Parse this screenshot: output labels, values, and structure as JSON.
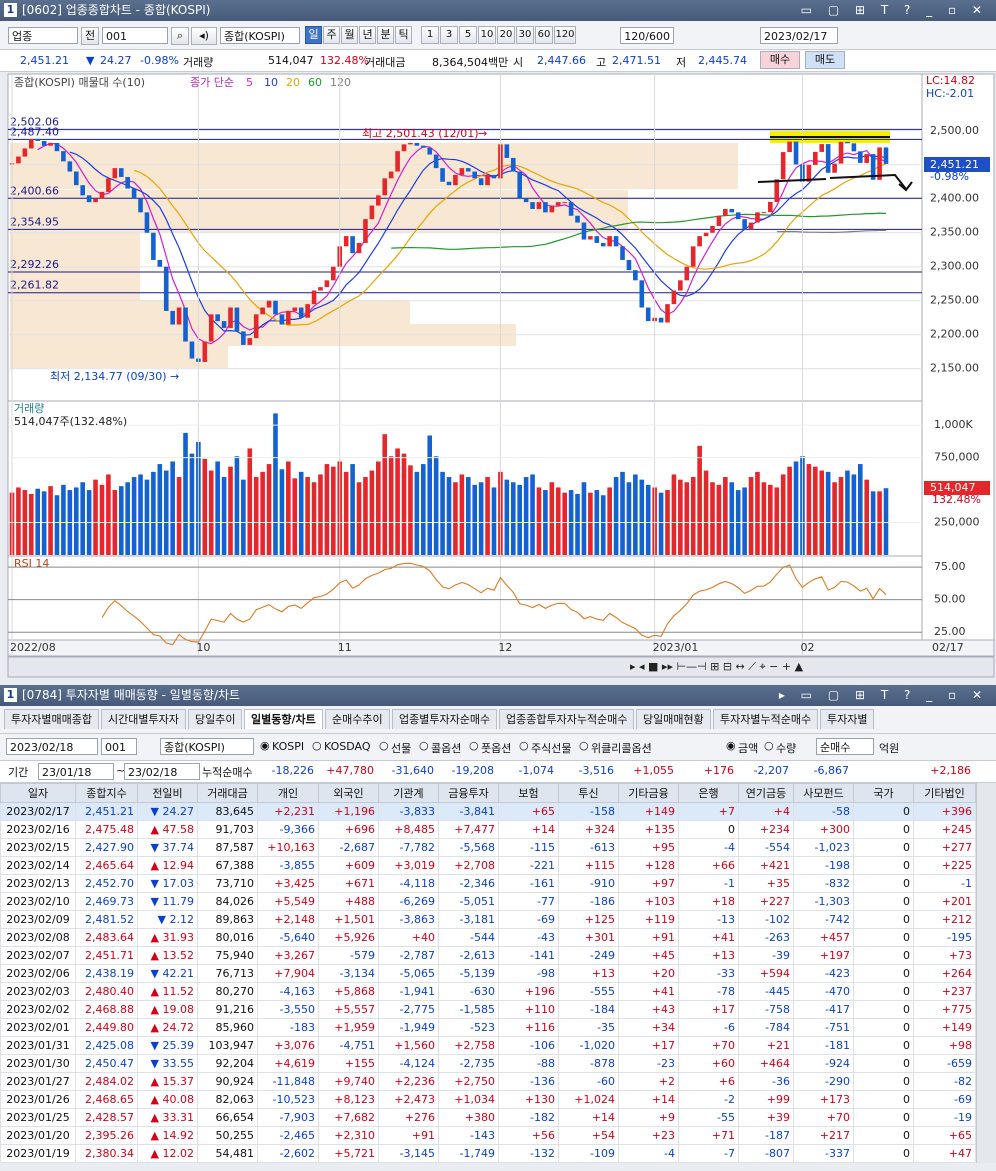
{
  "window1": {
    "window_no": "1",
    "title": "[0602] 업종종합차트 - 종합(KOSPI)",
    "toolbar": {
      "market": "업종",
      "all": "전",
      "code": "001",
      "name": "종합(KOSPI)",
      "periods": [
        "일",
        "주",
        "월",
        "년",
        "분",
        "틱"
      ],
      "intervals": [
        "1",
        "3",
        "5",
        "10",
        "20",
        "30",
        "60",
        "120"
      ],
      "count": "120/600",
      "date": "2023/02/17"
    },
    "quote": {
      "price": "2,451.21",
      "arrow": "▼",
      "change": "24.27",
      "change_pct": "-0.98%",
      "volume_label": "거래량",
      "volume": "514,047",
      "volume_ratio": "132.48%",
      "amount_label": "거래대금",
      "amount": "8,364,504백만",
      "open_label": "시",
      "open": "2,447.66",
      "high_label": "고",
      "high": "2,471.51",
      "low_label": "저",
      "low": "2,445.74",
      "buy": "매수",
      "sell": "매도"
    }
  },
  "chart_data": {
    "type": "candlestick",
    "legend": "종합(KOSPI) 매물대 수(10)",
    "ma_label": "종가 단순",
    "ma_periods": [
      5,
      10,
      20,
      60,
      120
    ],
    "ma_colors": [
      "#d21ed2",
      "#1e3ce6",
      "#e8a400",
      "#1f9a2a",
      "#7d7d7d"
    ],
    "lc": "LC:14.82",
    "hc": "HC:-2.01",
    "categories": [
      "2022/08",
      null,
      null,
      null,
      null,
      null,
      null,
      null,
      null,
      null,
      null,
      null,
      null,
      null,
      null,
      null,
      null,
      null,
      null,
      null,
      null,
      null,
      null,
      null,
      null,
      null,
      null,
      null,
      null,
      "10",
      null,
      null,
      null,
      null,
      null,
      null,
      null,
      null,
      null,
      null,
      null,
      null,
      null,
      null,
      null,
      null,
      null,
      null,
      null,
      null,
      null,
      "11",
      null,
      null,
      null,
      null,
      null,
      null,
      null,
      null,
      null,
      null,
      null,
      null,
      null,
      null,
      null,
      null,
      null,
      null,
      null,
      null,
      null,
      null,
      null,
      null,
      "12",
      null,
      null,
      null,
      null,
      null,
      null,
      null,
      null,
      null,
      null,
      null,
      null,
      null,
      null,
      null,
      null,
      null,
      null,
      null,
      null,
      null,
      null,
      null,
      "2023/01",
      null,
      null,
      null,
      null,
      null,
      null,
      null,
      null,
      null,
      null,
      null,
      null,
      null,
      null,
      null,
      null,
      null,
      null,
      null,
      null,
      null,
      null,
      "02",
      null,
      null,
      null,
      null,
      null,
      null,
      null,
      null,
      null,
      null,
      null,
      null,
      "02/17"
    ],
    "closes": [
      2452,
      2462,
      2474,
      2488,
      2485,
      2478,
      2482,
      2470,
      2455,
      2440,
      2420,
      2405,
      2395,
      2400,
      2410,
      2430,
      2445,
      2432,
      2415,
      2400,
      2380,
      2350,
      2310,
      2300,
      2235,
      2215,
      2240,
      2190,
      2165,
      2160,
      2190,
      2230,
      2220,
      2210,
      2240,
      2205,
      2185,
      2195,
      2230,
      2240,
      2250,
      2230,
      2215,
      2235,
      2240,
      2225,
      2245,
      2265,
      2270,
      2280,
      2300,
      2330,
      2345,
      2320,
      2335,
      2370,
      2390,
      2405,
      2430,
      2440,
      2470,
      2480,
      2482,
      2478,
      2475,
      2465,
      2445,
      2425,
      2420,
      2435,
      2445,
      2440,
      2430,
      2420,
      2435,
      2430,
      2480,
      2460,
      2440,
      2400,
      2395,
      2385,
      2395,
      2380,
      2390,
      2395,
      2395,
      2375,
      2365,
      2340,
      2345,
      2335,
      2330,
      2345,
      2330,
      2310,
      2295,
      2280,
      2240,
      2220,
      2225,
      2218,
      2245,
      2265,
      2280,
      2300,
      2330,
      2345,
      2350,
      2360,
      2375,
      2385,
      2380,
      2370,
      2355,
      2365,
      2380,
      2380.34,
      2395.26,
      2428.57,
      2468.65,
      2484.02,
      2450.47,
      2425.08,
      2449.8,
      2468.88,
      2480.4,
      2438.19,
      2451.71,
      2483.64,
      2481.52,
      2469.73,
      2452.7,
      2465.64,
      2427.9,
      2475.48,
      2451.21
    ],
    "volumes": [
      480000,
      520000,
      500000,
      470000,
      510000,
      490000,
      530000,
      460000,
      540000,
      500000,
      520000,
      560000,
      500000,
      580000,
      540000,
      620000,
      500000,
      530000,
      560000,
      600000,
      620000,
      580000,
      640000,
      700000,
      650000,
      720000,
      600000,
      940000,
      780000,
      870000,
      740000,
      650000,
      720000,
      600000,
      680000,
      760000,
      580000,
      820000,
      600000,
      640000,
      700000,
      1090000,
      660000,
      720000,
      590000,
      640000,
      600000,
      560000,
      620000,
      700000,
      680000,
      720000,
      640000,
      700000,
      560000,
      600000,
      650000,
      720000,
      930000,
      760000,
      820000,
      780000,
      690000,
      640000,
      700000,
      920000,
      760000,
      640000,
      600000,
      560000,
      620000,
      600000,
      540000,
      560000,
      600000,
      520000,
      640000,
      580000,
      560000,
      540000,
      600000,
      620000,
      520000,
      500000,
      560000,
      520000,
      480000,
      500000,
      470000,
      560000,
      480000,
      500000,
      460000,
      520000,
      600000,
      640000,
      560000,
      620000,
      580000,
      540000,
      520000,
      480000,
      500000,
      620000,
      580000,
      560000,
      600000,
      840000,
      650000,
      560000,
      540000,
      600000,
      560000,
      500000,
      520000,
      600000,
      640000,
      560000,
      540000,
      520000,
      620000,
      680000,
      720000,
      760000,
      700000,
      680000,
      650000,
      640000,
      560000,
      600000,
      650000,
      620000,
      700000,
      580000,
      490000,
      490000,
      514047
    ],
    "ylim": [
      2104,
      2582
    ],
    "yticks": [
      {
        "value": 2150,
        "label": "2,150.00"
      },
      {
        "value": 2200,
        "label": "2,200.00"
      },
      {
        "value": 2250,
        "label": "2,250.00"
      },
      {
        "value": 2300,
        "label": "2,300.00"
      },
      {
        "value": 2350,
        "label": "2,350.00"
      },
      {
        "value": 2400,
        "label": "2,400.00"
      },
      {
        "value": 2450,
        "label": "2,450.00"
      },
      {
        "value": 2500,
        "label": "2,500.00"
      }
    ],
    "levels": [
      {
        "value": 2502.06,
        "label": "2,502.06"
      },
      {
        "value": 2487.4,
        "label": "2,487.40"
      },
      {
        "value": 2400.66,
        "label": "2,400.66"
      },
      {
        "value": 2354.95,
        "label": "2,354.95"
      },
      {
        "value": 2292.26,
        "label": "2,292.26"
      },
      {
        "value": 2261.82,
        "label": "2,261.82"
      }
    ],
    "high_note": "최고 2,501.43 (12/01)",
    "low_note": "최저 2,134.77 (09/30)",
    "last_price": "2,451.21",
    "last_pct": "-0.98%",
    "volume_title": "거래량",
    "volume_note": "514,047주(132.48%)",
    "volume_tag": "514,047",
    "volume_tag_pct": "132.48%",
    "vlim": [
      0,
      1170000
    ],
    "vticks": [
      {
        "value": 250000,
        "label": "250,000"
      },
      {
        "value": 750000,
        "label": "750,000"
      },
      {
        "value": 1000000,
        "label": "1,000K"
      }
    ],
    "rsi_label": "RSI 14",
    "rsi_period": 14,
    "rsi_lim": [
      19,
      82
    ],
    "rsi_ticks": [
      {
        "value": 25,
        "label": "25.00"
      },
      {
        "value": 50,
        "label": "50.00"
      },
      {
        "value": 75,
        "label": "75.00"
      }
    ],
    "up_color": "#e5262b",
    "down_color": "#1462d2",
    "level_color": "#1a1a8c"
  },
  "window2": {
    "window_no": "1",
    "title": "[0784] 투자자별 매매동향 - 일별동향/차트",
    "tabs": [
      "투자자별매매종합",
      "시간대별투자자",
      "당일추이",
      "일별동향/차트",
      "순매수추이",
      "업종별투자자순매수",
      "업종종합투자자누적순매수",
      "당일매매현황",
      "투자자별누적순매수",
      "투자자별"
    ],
    "active_tab": 3,
    "controls": {
      "date": "2023/02/18",
      "code": "001",
      "name": "종합(KOSPI)",
      "markets": [
        "KOSPI",
        "KOSDAQ",
        "선물",
        "콜옵션",
        "풋옵션",
        "주식선물",
        "위클리콜옵션"
      ],
      "units": [
        "금액",
        "수량"
      ],
      "mode": "순매수",
      "unit": "억원"
    }
  },
  "table": {
    "period": {
      "label": "기간",
      "from": "23/01/18",
      "tilde": "~",
      "to": "23/02/18",
      "sum_label": "누적순매수",
      "sums": [
        "-18,226",
        "+47,780",
        "-31,640",
        "-19,208",
        "-1,074",
        "-3,516",
        "+1,055",
        "+176",
        "-2,207",
        "-6,867",
        null,
        "+2,186"
      ]
    },
    "headers": [
      "일자",
      "종합지수",
      "전일비",
      "거래대금",
      "개인",
      "외국인",
      "기관계",
      "금융투자",
      "보험",
      "투신",
      "기타금융",
      "은행",
      "연기금등",
      "사모펀드",
      "국가",
      "기타법인"
    ],
    "rows": [
      [
        "2023/02/17",
        "2,451.21",
        "▼ 24.27",
        "83,645",
        "+2,231",
        "+1,196",
        "-3,833",
        "-3,841",
        "+65",
        "-158",
        "+149",
        "+7",
        "+4",
        "-58",
        "0",
        "+396"
      ],
      [
        "2023/02/16",
        "2,475.48",
        "▲ 47.58",
        "91,703",
        "-9,366",
        "+696",
        "+8,485",
        "+7,477",
        "+14",
        "+324",
        "+135",
        "0",
        "+234",
        "+300",
        "0",
        "+245"
      ],
      [
        "2023/02/15",
        "2,427.90",
        "▼ 37.74",
        "87,587",
        "+10,163",
        "-2,687",
        "-7,782",
        "-5,568",
        "-115",
        "-613",
        "+95",
        "-4",
        "-554",
        "-1,023",
        "0",
        "+277"
      ],
      [
        "2023/02/14",
        "2,465.64",
        "▲ 12.94",
        "67,388",
        "-3,855",
        "+609",
        "+3,019",
        "+2,708",
        "-221",
        "+115",
        "+128",
        "+66",
        "+421",
        "-198",
        "0",
        "+225"
      ],
      [
        "2023/02/13",
        "2,452.70",
        "▼ 17.03",
        "73,710",
        "+3,425",
        "+671",
        "-4,118",
        "-2,346",
        "-161",
        "-910",
        "+97",
        "-1",
        "+35",
        "-832",
        "0",
        "-1"
      ],
      [
        "2023/02/10",
        "2,469.73",
        "▼ 11.79",
        "84,026",
        "+5,549",
        "+488",
        "-6,269",
        "-5,051",
        "-77",
        "-186",
        "+103",
        "+18",
        "+227",
        "-1,303",
        "0",
        "+201"
      ],
      [
        "2023/02/09",
        "2,481.52",
        "▼ 2.12",
        "89,863",
        "+2,148",
        "+1,501",
        "-3,863",
        "-3,181",
        "-69",
        "+125",
        "+119",
        "-13",
        "-102",
        "-742",
        "0",
        "+212"
      ],
      [
        "2023/02/08",
        "2,483.64",
        "▲ 31.93",
        "80,016",
        "-5,640",
        "+5,926",
        "+40",
        "-544",
        "-43",
        "+301",
        "+91",
        "+41",
        "-263",
        "+457",
        "0",
        "-195"
      ],
      [
        "2023/02/07",
        "2,451.71",
        "▲ 13.52",
        "75,940",
        "+3,267",
        "-579",
        "-2,787",
        "-2,613",
        "-141",
        "-249",
        "+45",
        "+13",
        "-39",
        "+197",
        "0",
        "+73"
      ],
      [
        "2023/02/06",
        "2,438.19",
        "▼ 42.21",
        "76,713",
        "+7,904",
        "-3,134",
        "-5,065",
        "-5,139",
        "-98",
        "+13",
        "+20",
        "-33",
        "+594",
        "-423",
        "0",
        "+264"
      ],
      [
        "2023/02/03",
        "2,480.40",
        "▲ 11.52",
        "80,270",
        "-4,163",
        "+5,868",
        "-1,941",
        "-630",
        "+196",
        "-555",
        "+41",
        "-78",
        "-445",
        "-470",
        "0",
        "+237"
      ],
      [
        "2023/02/02",
        "2,468.88",
        "▲ 19.08",
        "91,216",
        "-3,550",
        "+5,557",
        "-2,775",
        "-1,585",
        "+110",
        "-184",
        "+43",
        "+17",
        "-758",
        "-417",
        "0",
        "+775"
      ],
      [
        "2023/02/01",
        "2,449.80",
        "▲ 24.72",
        "85,960",
        "-183",
        "+1,959",
        "-1,949",
        "-523",
        "+116",
        "-35",
        "+34",
        "-6",
        "-784",
        "-751",
        "0",
        "+149"
      ],
      [
        "2023/01/31",
        "2,425.08",
        "▼ 25.39",
        "103,947",
        "+3,076",
        "-4,751",
        "+1,560",
        "+2,758",
        "-106",
        "-1,020",
        "+17",
        "+70",
        "+21",
        "-181",
        "0",
        "+98"
      ],
      [
        "2023/01/30",
        "2,450.47",
        "▼ 33.55",
        "92,204",
        "+4,619",
        "+155",
        "-4,124",
        "-2,735",
        "-88",
        "-878",
        "-23",
        "+60",
        "+464",
        "-924",
        "0",
        "-659"
      ],
      [
        "2023/01/27",
        "2,484.02",
        "▲ 15.37",
        "90,924",
        "-11,848",
        "+9,740",
        "+2,236",
        "+2,750",
        "-136",
        "-60",
        "+2",
        "+6",
        "-36",
        "-290",
        "0",
        "-82"
      ],
      [
        "2023/01/26",
        "2,468.65",
        "▲ 40.08",
        "82,063",
        "-10,523",
        "+8,123",
        "+2,473",
        "+1,034",
        "+130",
        "+1,024",
        "+14",
        "-2",
        "+99",
        "+173",
        "0",
        "-69"
      ],
      [
        "2023/01/25",
        "2,428.57",
        "▲ 33.31",
        "66,654",
        "-7,903",
        "+7,682",
        "+276",
        "+380",
        "-182",
        "+14",
        "+9",
        "-55",
        "+39",
        "+70",
        "0",
        "-19"
      ],
      [
        "2023/01/20",
        "2,395.26",
        "▲ 14.92",
        "50,255",
        "-2,465",
        "+2,310",
        "+91",
        "-143",
        "+56",
        "+54",
        "+23",
        "+71",
        "-187",
        "+217",
        "0",
        "+65"
      ],
      [
        "2023/01/19",
        "2,380.34",
        "▲ 12.02",
        "54,481",
        "-2,602",
        "+5,721",
        "-3,145",
        "-1,749",
        "-132",
        "-109",
        "-4",
        "-7",
        "-807",
        "-337",
        "0",
        "+47"
      ]
    ]
  }
}
